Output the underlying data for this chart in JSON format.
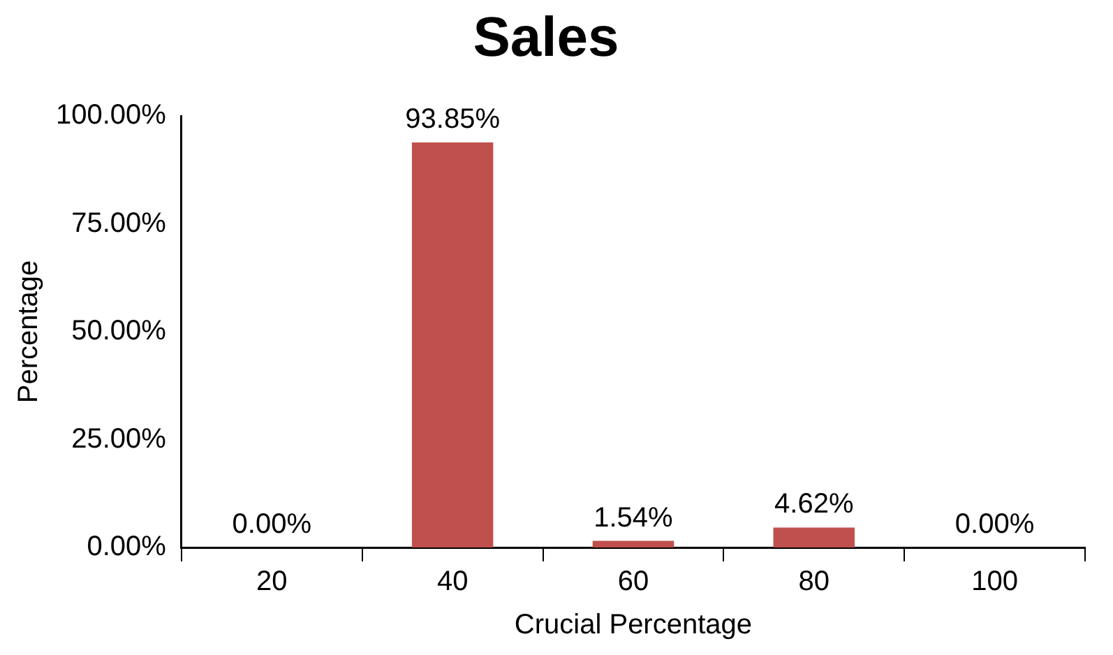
{
  "chart_data": {
    "type": "bar",
    "title": "Sales",
    "xlabel": "Crucial Percentage",
    "ylabel": "Percentage",
    "categories": [
      "20",
      "40",
      "60",
      "80",
      "100"
    ],
    "values": [
      0,
      93.85,
      1.54,
      4.62,
      0
    ],
    "value_labels": [
      "0.00%",
      "93.85%",
      "1.54%",
      "4.62%",
      "0.00%"
    ],
    "color": "#c0504d",
    "ylim": [
      0,
      100
    ],
    "yticks": [
      {
        "value": 0,
        "label": "0.00%"
      },
      {
        "value": 25,
        "label": "25.00%"
      },
      {
        "value": 50,
        "label": "50.00%"
      },
      {
        "value": 75,
        "label": "75.00%"
      },
      {
        "value": 100,
        "label": "100.00%"
      }
    ],
    "grid": false,
    "legend": false
  }
}
